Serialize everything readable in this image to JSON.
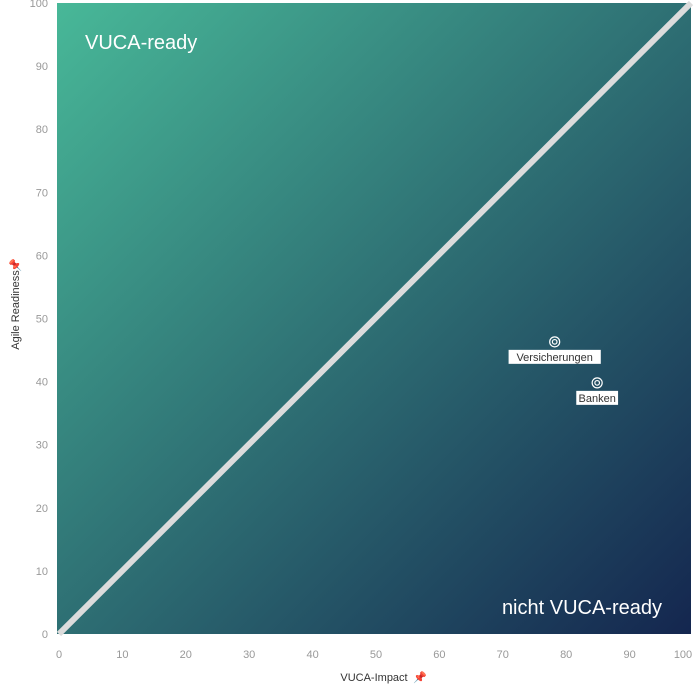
{
  "chart_data": {
    "type": "scatter",
    "title": "",
    "xlabel": "VUCA-Impact",
    "ylabel": "Agile Readiness",
    "xlim": [
      0,
      100
    ],
    "ylim": [
      0,
      100
    ],
    "xticks": [
      "0",
      "10",
      "20",
      "30",
      "40",
      "50",
      "60",
      "70",
      "80",
      "90",
      "100"
    ],
    "yticks": [
      "0",
      "10",
      "20",
      "30",
      "40",
      "50",
      "60",
      "70",
      "80",
      "90",
      "100"
    ],
    "grid": false,
    "zones": {
      "top_left": "VUCA-ready",
      "bottom_right": "nicht VUCA-ready"
    },
    "diagonal": [
      [
        0,
        0
      ],
      [
        100,
        100
      ]
    ],
    "points": [
      {
        "label": "Versicherungen",
        "x": 78.5,
        "y": 46.3
      },
      {
        "label": "Banken",
        "x": 85.2,
        "y": 39.8
      }
    ],
    "colors": {
      "gradient_start": "#48b898",
      "gradient_end": "#14264f",
      "diagonal": "#dcdcdc"
    }
  }
}
